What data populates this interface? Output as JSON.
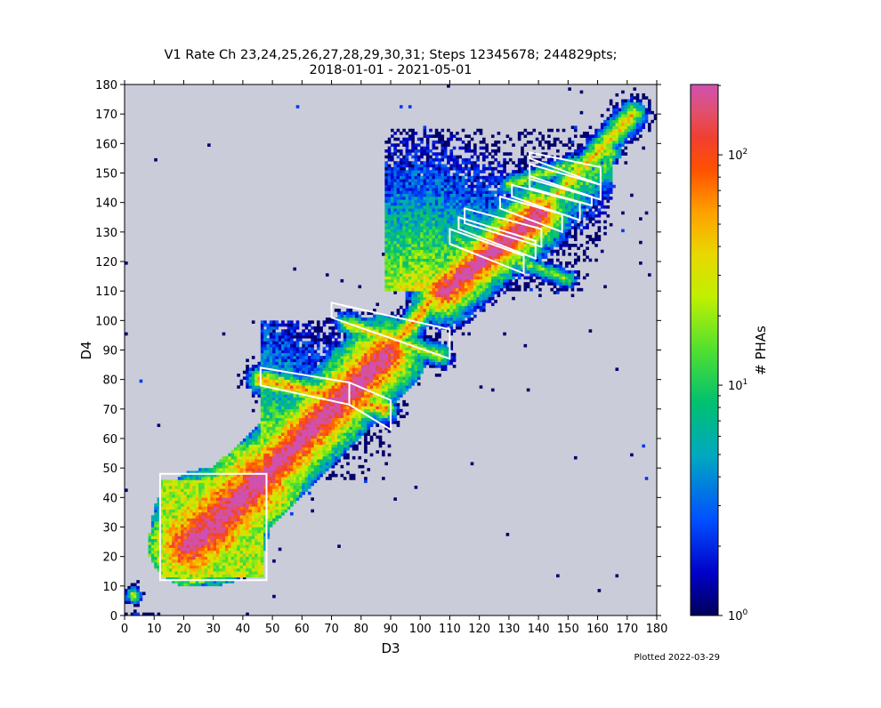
{
  "chart_data": {
    "type": "heatmap",
    "title": [
      "V1 Rate Ch 23,24,25,26,27,28,29,30,31; Steps 12345678; 244829pts;",
      "2018-01-01 - 2021-05-01"
    ],
    "xlabel": "D3",
    "ylabel": "D4",
    "xlim": [
      0,
      180
    ],
    "ylim": [
      0,
      180
    ],
    "xticks": [
      0,
      10,
      20,
      30,
      40,
      50,
      60,
      70,
      80,
      90,
      100,
      110,
      120,
      130,
      140,
      150,
      160,
      170,
      180
    ],
    "yticks": [
      0,
      10,
      20,
      30,
      40,
      50,
      60,
      70,
      80,
      90,
      100,
      110,
      120,
      130,
      140,
      150,
      160,
      170,
      180
    ],
    "grid": false,
    "background_color": "#cbccd9",
    "colorbar": {
      "label": "# PHAs",
      "scale": "log",
      "range": [
        1,
        202
      ],
      "ticks": [
        {
          "value": 1,
          "base": "10",
          "exp": "0"
        },
        {
          "value": 10,
          "base": "10",
          "exp": "1"
        },
        {
          "value": 100,
          "base": "10",
          "exp": "2"
        }
      ],
      "colormap": [
        [
          0,
          "#00005a"
        ],
        [
          0.08,
          "#0000c8"
        ],
        [
          0.18,
          "#0050ff"
        ],
        [
          0.3,
          "#00a8c0"
        ],
        [
          0.4,
          "#00c070"
        ],
        [
          0.5,
          "#50e030"
        ],
        [
          0.6,
          "#c0f000"
        ],
        [
          0.68,
          "#e8d800"
        ],
        [
          0.76,
          "#ffa000"
        ],
        [
          0.84,
          "#ff5000"
        ],
        [
          0.9,
          "#f04030"
        ],
        [
          0.95,
          "#e05070"
        ],
        [
          1,
          "#d050b0"
        ]
      ]
    },
    "density_model_log10_counts": {
      "ridges": [
        [
          22,
          24,
          46,
          46,
          2.4,
          0.1
        ],
        [
          46,
          46,
          88,
          88,
          2.45,
          0.14
        ],
        [
          80,
          78,
          108,
          112,
          1.9,
          0.35
        ],
        [
          108,
          110,
          140,
          136,
          2.45,
          0.18
        ],
        [
          138,
          134,
          172,
          170,
          1.7,
          0.3
        ],
        [
          46,
          80,
          88,
          70,
          1.9,
          0.35
        ],
        [
          75,
          99,
          107,
          88,
          1.6,
          0.35
        ],
        [
          112,
          128,
          150,
          114,
          1.3,
          0.35
        ],
        [
          130,
          146,
          165,
          157,
          1.4,
          0.35
        ]
      ],
      "blobs": [
        [
          29,
          30,
          2.4,
          0.09
        ],
        [
          3,
          7,
          1.7,
          0.5
        ]
      ],
      "plates": [
        {
          "x": [
            12,
            47
          ],
          "y": [
            13,
            46
          ],
          "base": 1.35,
          "dx": 0,
          "dy": 0
        },
        {
          "x": [
            46,
            90
          ],
          "y": [
            46,
            100
          ],
          "base": 1.55,
          "dx": 0.015,
          "dy": 0.026
        },
        {
          "x": [
            88,
            165
          ],
          "y": [
            110,
            165
          ],
          "base": 1.5,
          "dx": 0.01,
          "dy": 0.028
        }
      ]
    },
    "regions": [
      [
        [
          12,
          12
        ],
        [
          48,
          12
        ],
        [
          48,
          48
        ],
        [
          12,
          48
        ]
      ],
      [
        [
          46,
          84
        ],
        [
          76,
          79
        ],
        [
          76,
          71.5
        ],
        [
          46,
          78
        ]
      ],
      [
        [
          76,
          79
        ],
        [
          90,
          73
        ],
        [
          90,
          63
        ],
        [
          76,
          71.5
        ]
      ],
      [
        [
          70,
          106
        ],
        [
          110,
          97
        ],
        [
          110,
          87
        ],
        [
          70,
          101
        ]
      ],
      [
        [
          110,
          131
        ],
        [
          135,
          122
        ],
        [
          135,
          116
        ],
        [
          110,
          126
        ]
      ],
      [
        [
          113,
          135
        ],
        [
          139,
          127
        ],
        [
          139,
          121
        ],
        [
          113,
          131
        ]
      ],
      [
        [
          115,
          138
        ],
        [
          141,
          131
        ],
        [
          141,
          125
        ],
        [
          115,
          133
        ]
      ],
      [
        [
          127,
          142
        ],
        [
          148,
          136
        ],
        [
          148,
          130
        ],
        [
          127,
          138
        ]
      ],
      [
        [
          131,
          146
        ],
        [
          154,
          140
        ],
        [
          154,
          134
        ],
        [
          131,
          142
        ]
      ],
      [
        [
          137,
          149
        ],
        [
          158,
          142
        ],
        [
          158,
          139
        ],
        [
          137,
          145
        ]
      ],
      [
        [
          137,
          153
        ],
        [
          161,
          146
        ],
        [
          161,
          141
        ],
        [
          137,
          148
        ]
      ],
      [
        [
          137,
          157
        ],
        [
          161,
          152
        ],
        [
          161,
          146
        ],
        [
          137,
          155
        ]
      ]
    ]
  },
  "footer": {
    "plotted": "Plotted 2022-03-29"
  }
}
